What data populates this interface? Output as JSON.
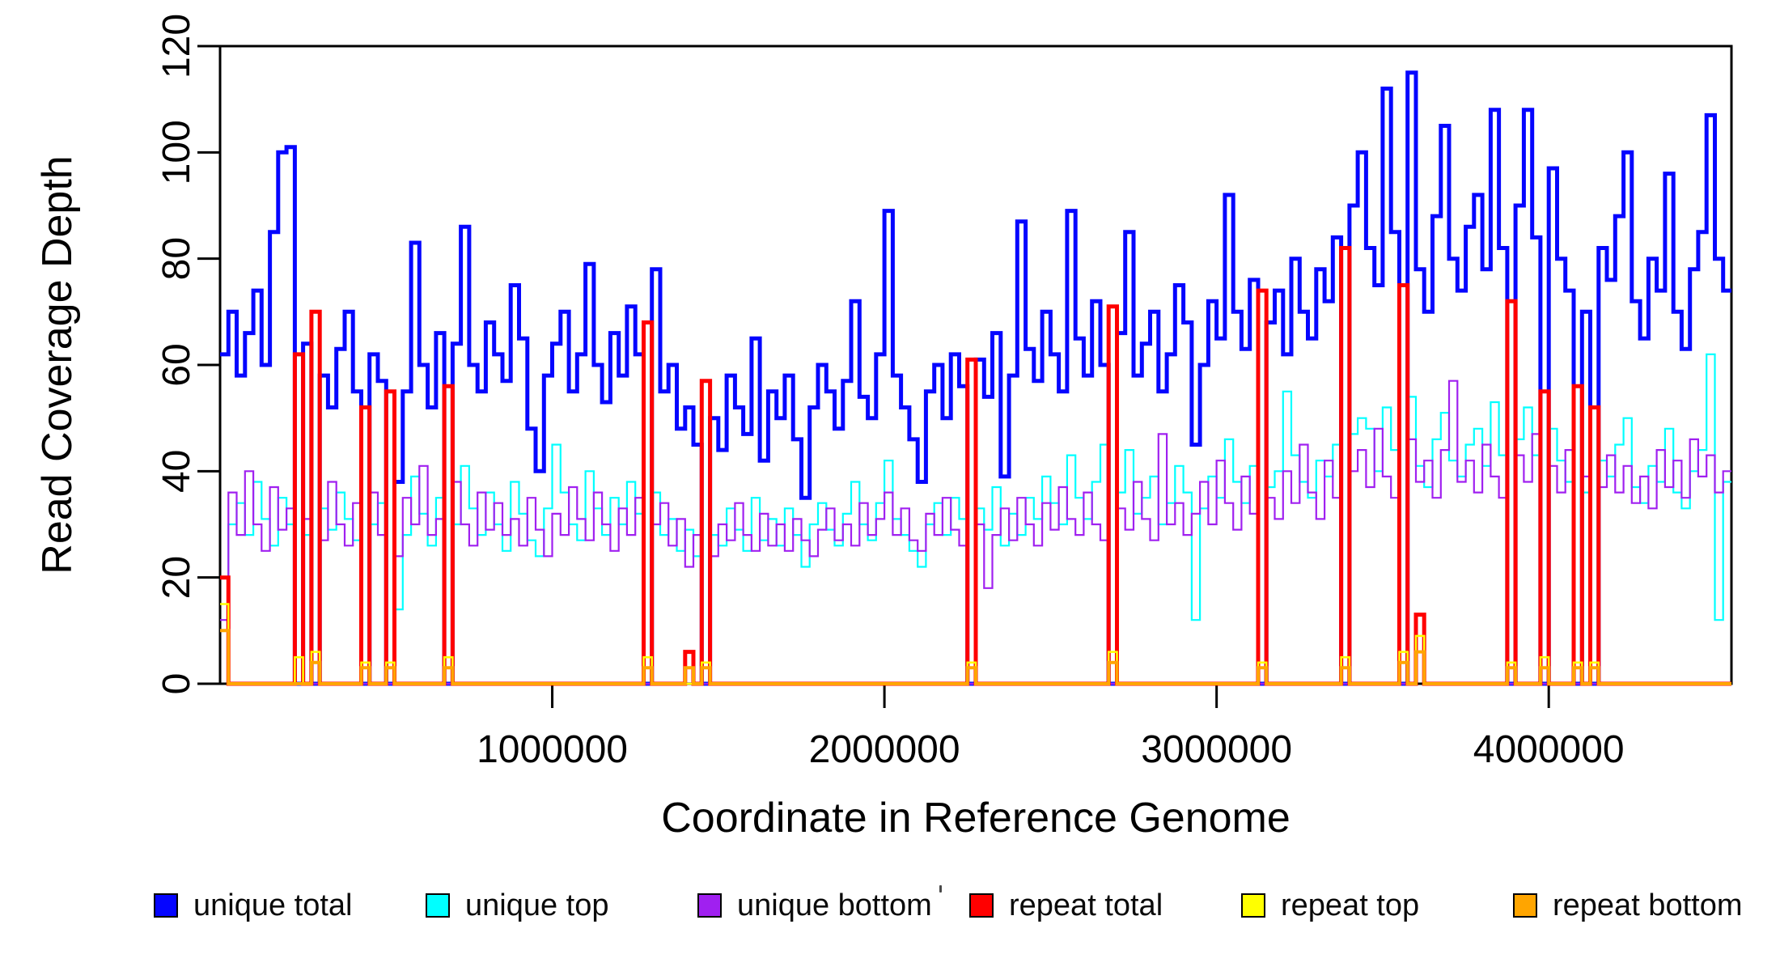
{
  "chart_data": {
    "type": "line",
    "subtype": "step",
    "title": "",
    "xlabel": "Coordinate in Reference Genome",
    "ylabel": "Read Coverage Depth",
    "xlim": [
      0,
      4550000
    ],
    "ylim": [
      0,
      120
    ],
    "x_ticks": [
      1000000,
      2000000,
      3000000,
      4000000
    ],
    "x_tick_labels": [
      "1000000",
      "2000000",
      "3000000",
      "4000000"
    ],
    "y_ticks": [
      0,
      20,
      40,
      60,
      80,
      100,
      120
    ],
    "y_tick_labels": [
      "0",
      "20",
      "40",
      "60",
      "80",
      "100",
      "120"
    ],
    "grid": false,
    "legend_position": "bottom",
    "n_bins": 182,
    "bin_size": 25000,
    "zero_coverage_repeat_bins": [
      9,
      11,
      17,
      20,
      27,
      51,
      58,
      90,
      107,
      125,
      135,
      142,
      155,
      159,
      163,
      165
    ],
    "series": [
      {
        "name": "unique total",
        "color": "#0505ff",
        "line_width": 5,
        "values": [
          62,
          70,
          58,
          66,
          74,
          60,
          85,
          100,
          101,
          0,
          64,
          0,
          58,
          52,
          63,
          70,
          55,
          0,
          62,
          57,
          0,
          38,
          55,
          83,
          60,
          52,
          66,
          0,
          64,
          86,
          60,
          55,
          68,
          62,
          57,
          75,
          65,
          48,
          40,
          58,
          64,
          70,
          55,
          62,
          79,
          60,
          53,
          66,
          58,
          71,
          62,
          0,
          78,
          55,
          60,
          48,
          52,
          45,
          0,
          50,
          44,
          58,
          52,
          47,
          65,
          42,
          55,
          50,
          58,
          46,
          35,
          52,
          60,
          55,
          48,
          57,
          72,
          54,
          50,
          62,
          89,
          58,
          52,
          46,
          38,
          55,
          60,
          50,
          62,
          56,
          0,
          61,
          54,
          66,
          39,
          58,
          87,
          63,
          57,
          70,
          62,
          55,
          89,
          65,
          58,
          72,
          60,
          0,
          66,
          85,
          58,
          64,
          70,
          55,
          62,
          75,
          68,
          45,
          60,
          72,
          65,
          92,
          70,
          63,
          76,
          0,
          68,
          74,
          62,
          80,
          70,
          65,
          78,
          72,
          84,
          0,
          90,
          100,
          82,
          75,
          112,
          85,
          0,
          115,
          78,
          70,
          88,
          105,
          80,
          74,
          86,
          92,
          78,
          108,
          82,
          0,
          90,
          108,
          84,
          0,
          97,
          80,
          74,
          0,
          70,
          0,
          82,
          76,
          88,
          100,
          72,
          65,
          80,
          74,
          96,
          70,
          63,
          78,
          85,
          107,
          80,
          74
        ]
      },
      {
        "name": "unique top",
        "color": "#00ffff",
        "line_width": 2.2,
        "values": [
          20,
          30,
          34,
          28,
          38,
          31,
          26,
          35,
          30,
          0,
          28,
          0,
          33,
          29,
          36,
          31,
          27,
          0,
          30,
          34,
          0,
          14,
          28,
          39,
          32,
          26,
          35,
          0,
          30,
          41,
          33,
          28,
          36,
          30,
          25,
          38,
          32,
          27,
          24,
          33,
          45,
          36,
          30,
          27,
          40,
          33,
          28,
          35,
          30,
          38,
          32,
          0,
          36,
          28,
          31,
          25,
          29,
          24,
          0,
          28,
          26,
          33,
          29,
          25,
          35,
          27,
          31,
          26,
          33,
          28,
          22,
          30,
          34,
          29,
          26,
          32,
          38,
          30,
          27,
          34,
          42,
          31,
          28,
          25,
          22,
          30,
          34,
          28,
          35,
          31,
          0,
          33,
          29,
          37,
          26,
          32,
          28,
          35,
          31,
          39,
          34,
          30,
          43,
          35,
          31,
          38,
          45,
          0,
          36,
          44,
          32,
          35,
          39,
          30,
          34,
          41,
          36,
          12,
          33,
          39,
          35,
          46,
          38,
          34,
          41,
          0,
          37,
          40,
          55,
          43,
          38,
          35,
          42,
          39,
          45,
          0,
          47,
          50,
          48,
          40,
          52,
          44,
          0,
          54,
          41,
          37,
          46,
          51,
          42,
          39,
          45,
          48,
          41,
          53,
          43,
          0,
          46,
          52,
          43,
          0,
          48,
          42,
          38,
          0,
          36,
          0,
          42,
          39,
          45,
          50,
          37,
          34,
          41,
          38,
          48,
          36,
          33,
          40,
          44,
          62,
          12,
          38
        ]
      },
      {
        "name": "unique bottom",
        "color": "#a020f0",
        "line_width": 2.2,
        "values": [
          12,
          36,
          28,
          40,
          30,
          25,
          37,
          29,
          33,
          0,
          31,
          0,
          27,
          38,
          30,
          26,
          34,
          0,
          36,
          28,
          0,
          24,
          35,
          30,
          41,
          28,
          31,
          0,
          38,
          30,
          26,
          36,
          29,
          34,
          28,
          31,
          26,
          35,
          29,
          24,
          32,
          28,
          37,
          31,
          27,
          36,
          30,
          25,
          33,
          28,
          35,
          0,
          30,
          34,
          26,
          31,
          22,
          28,
          0,
          24,
          30,
          27,
          34,
          28,
          25,
          32,
          26,
          30,
          25,
          31,
          27,
          24,
          29,
          33,
          27,
          30,
          26,
          34,
          28,
          31,
          36,
          28,
          33,
          27,
          25,
          32,
          28,
          35,
          29,
          26,
          0,
          30,
          18,
          28,
          33,
          27,
          35,
          30,
          26,
          34,
          29,
          37,
          31,
          28,
          36,
          30,
          27,
          0,
          33,
          29,
          38,
          31,
          27,
          47,
          30,
          34,
          28,
          32,
          38,
          30,
          42,
          34,
          29,
          39,
          32,
          0,
          35,
          31,
          40,
          34,
          45,
          36,
          31,
          42,
          35,
          0,
          40,
          44,
          37,
          48,
          39,
          35,
          0,
          46,
          38,
          42,
          35,
          44,
          57,
          38,
          42,
          36,
          45,
          39,
          35,
          0,
          43,
          38,
          47,
          0,
          41,
          36,
          44,
          0,
          39,
          0,
          37,
          43,
          36,
          41,
          34,
          39,
          33,
          44,
          37,
          42,
          35,
          46,
          39,
          43,
          36,
          40
        ]
      },
      {
        "name": "repeat total",
        "color": "#ff0000",
        "line_width": 5,
        "baseline": 0,
        "spikes": [
          [
            0,
            20
          ],
          [
            9,
            62
          ],
          [
            11,
            70
          ],
          [
            17,
            52
          ],
          [
            20,
            55
          ],
          [
            27,
            56
          ],
          [
            51,
            68
          ],
          [
            56,
            6
          ],
          [
            58,
            57
          ],
          [
            90,
            61
          ],
          [
            107,
            71
          ],
          [
            125,
            74
          ],
          [
            135,
            82
          ],
          [
            142,
            75
          ],
          [
            144,
            13
          ],
          [
            155,
            72
          ],
          [
            159,
            55
          ],
          [
            163,
            56
          ],
          [
            165,
            52
          ]
        ]
      },
      {
        "name": "repeat top",
        "color": "#ffff00",
        "line_width": 2.5,
        "baseline": 0,
        "spikes": [
          [
            0,
            15
          ],
          [
            9,
            5
          ],
          [
            11,
            6
          ],
          [
            17,
            4
          ],
          [
            20,
            4
          ],
          [
            27,
            5
          ],
          [
            51,
            5
          ],
          [
            58,
            4
          ],
          [
            90,
            4
          ],
          [
            107,
            6
          ],
          [
            125,
            4
          ],
          [
            135,
            5
          ],
          [
            142,
            6
          ],
          [
            144,
            9
          ],
          [
            155,
            4
          ],
          [
            159,
            5
          ],
          [
            163,
            4
          ],
          [
            165,
            4
          ]
        ]
      },
      {
        "name": "repeat bottom",
        "color": "#ffa500",
        "line_width": 4,
        "baseline": 0,
        "spikes": [
          [
            0,
            10
          ],
          [
            11,
            4
          ],
          [
            17,
            3
          ],
          [
            20,
            3
          ],
          [
            27,
            3
          ],
          [
            51,
            3
          ],
          [
            56,
            3
          ],
          [
            58,
            3
          ],
          [
            90,
            3
          ],
          [
            107,
            4
          ],
          [
            125,
            3
          ],
          [
            135,
            3
          ],
          [
            142,
            4
          ],
          [
            144,
            6
          ],
          [
            155,
            3
          ],
          [
            159,
            3
          ],
          [
            163,
            3
          ],
          [
            165,
            3
          ]
        ]
      }
    ],
    "legend": [
      {
        "label": "unique total",
        "color": "#0505ff"
      },
      {
        "label": "unique top",
        "color": "#00ffff"
      },
      {
        "label": "unique bottom",
        "color": "#a020f0"
      },
      {
        "label": "repeat total",
        "color": "#ff0000"
      },
      {
        "label": "repeat top",
        "color": "#ffff00"
      },
      {
        "label": "repeat bottom",
        "color": "#ffa500"
      }
    ]
  }
}
